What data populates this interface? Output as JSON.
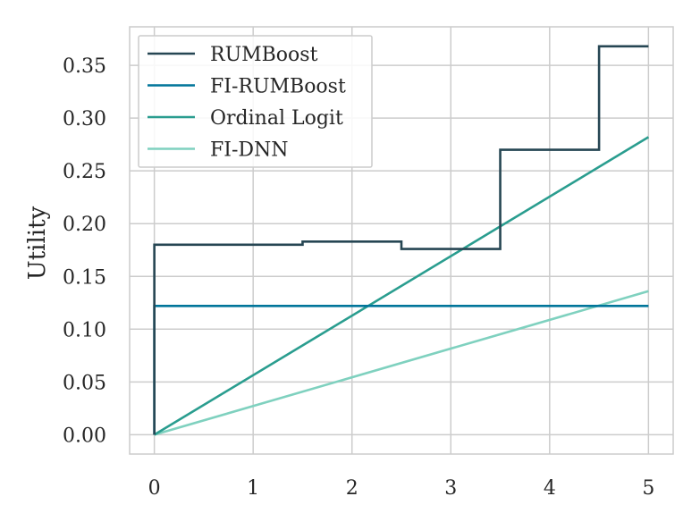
{
  "chart_data": {
    "type": "line",
    "title": "",
    "xlabel": "",
    "ylabel": "Utility",
    "xlim": [
      -0.25,
      5.25
    ],
    "ylim": [
      -0.0183,
      0.3865
    ],
    "xticks": [
      0,
      1,
      2,
      3,
      4,
      5
    ],
    "xtick_labels": [
      "0",
      "1",
      "2",
      "3",
      "4",
      "5"
    ],
    "yticks": [
      0.0,
      0.05,
      0.1,
      0.15,
      0.2,
      0.25,
      0.3,
      0.35
    ],
    "ytick_labels": [
      "0.00",
      "0.05",
      "0.10",
      "0.15",
      "0.20",
      "0.25",
      "0.30",
      "0.35"
    ],
    "grid": true,
    "legend_position": "top-left",
    "series": [
      {
        "name": "RUMBoost",
        "color": "#264653",
        "step": true,
        "x": [
          0,
          0,
          1.5,
          1.5,
          2.5,
          2.5,
          3.5,
          3.5,
          4.5,
          4.5,
          5
        ],
        "y": [
          0,
          0.18,
          0.18,
          0.183,
          0.183,
          0.176,
          0.176,
          0.27,
          0.27,
          0.368,
          0.368
        ]
      },
      {
        "name": "FI-RUMBoost",
        "color": "#00759a",
        "step": true,
        "x": [
          0,
          0,
          5
        ],
        "y": [
          0,
          0.122,
          0.122
        ]
      },
      {
        "name": "Ordinal Logit",
        "color": "#2a9d8f",
        "step": false,
        "x": [
          0,
          5
        ],
        "y": [
          0,
          0.282
        ]
      },
      {
        "name": "FI-DNN",
        "color": "#7fd1bf",
        "step": false,
        "x": [
          0,
          5
        ],
        "y": [
          0,
          0.136
        ]
      }
    ]
  }
}
